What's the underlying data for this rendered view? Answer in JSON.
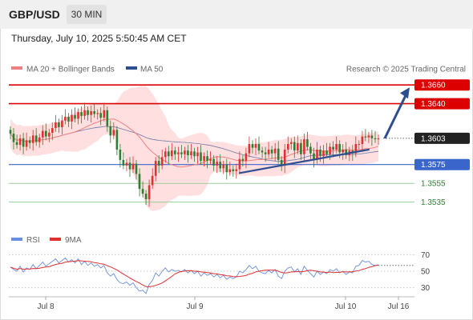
{
  "header": {
    "symbol": "GBP/USD",
    "timeframe": "30 MIN",
    "datetime": "Thursday, July 10, 2025 5:50:45 AM CET"
  },
  "legend": {
    "ma20_label": "MA 20 + Bollinger Bands",
    "ma50_label": "MA 50",
    "credit": "Research © 2025 Trading Central",
    "rsi_label": "RSI",
    "rsi_ma_label": "9MA"
  },
  "colors": {
    "bull": "#e03030",
    "bear": "#2e7d32",
    "ma20": "#f08080",
    "ma50": "#2e4f8f",
    "band": "#ffd9d9",
    "resistance": "#dd0000",
    "pivot": "#3a66cc",
    "support": "#2e7d32",
    "trendline": "#2e4f8f",
    "rsi": "#6a8ee0",
    "rsi_ma": "#e03030"
  },
  "chart_data": [
    {
      "type": "candlestick",
      "title": "GBP/USD",
      "timeframe": "30 MIN",
      "x_ticks": [
        "Jul 8",
        "Jul 9",
        "Jul 10",
        "Jul 16"
      ],
      "ylim": [
        1.3515,
        1.3667
      ],
      "levels": [
        {
          "value": "1.3660",
          "kind": "resistance"
        },
        {
          "value": "1.3640",
          "kind": "resistance"
        },
        {
          "value": "1.3603",
          "kind": "last"
        },
        {
          "value": "1.3575",
          "kind": "pivot"
        },
        {
          "value": "1.3555",
          "kind": "support"
        },
        {
          "value": "1.3535",
          "kind": "support"
        }
      ],
      "candles_close": [
        1.3608,
        1.3599,
        1.3596,
        1.3603,
        1.3594,
        1.3601,
        1.3598,
        1.3606,
        1.3599,
        1.3604,
        1.3611,
        1.3605,
        1.3609,
        1.3614,
        1.362,
        1.3615,
        1.3622,
        1.3626,
        1.3621,
        1.3628,
        1.3624,
        1.3631,
        1.3627,
        1.3633,
        1.3628,
        1.3632,
        1.3629,
        1.363,
        1.3625,
        1.3633,
        1.3616,
        1.3606,
        1.3612,
        1.3591,
        1.358,
        1.3574,
        1.3577,
        1.357,
        1.3576,
        1.3565,
        1.3549,
        1.3544,
        1.3538,
        1.3553,
        1.3563,
        1.3579,
        1.3574,
        1.3583,
        1.3589,
        1.3584,
        1.359,
        1.3586,
        1.3588,
        1.3586,
        1.359,
        1.3585,
        1.3589,
        1.3584,
        1.3588,
        1.3579,
        1.3584,
        1.3579,
        1.3581,
        1.3574,
        1.3578,
        1.3571,
        1.3575,
        1.3567,
        1.357,
        1.3568,
        1.357,
        1.3581,
        1.3579,
        1.3587,
        1.3597,
        1.3593,
        1.3597,
        1.359,
        1.3588,
        1.3586,
        1.3591,
        1.3587,
        1.3592,
        1.358,
        1.3574,
        1.3591,
        1.3597,
        1.3599,
        1.359,
        1.3598,
        1.3586,
        1.3602,
        1.3594,
        1.3587,
        1.358,
        1.3591,
        1.3584,
        1.359,
        1.3586,
        1.3594,
        1.3591,
        1.3597,
        1.3588,
        1.3591,
        1.3585,
        1.359,
        1.3587,
        1.3597,
        1.3597,
        1.3605,
        1.3604,
        1.3606,
        1.3603,
        1.3602,
        1.3603
      ],
      "ma20_end": 1.3593,
      "ma50_end": 1.3588,
      "forecast": {
        "from": 1.3603,
        "to": 1.366
      },
      "trendline": {
        "from": 1.3566,
        "to": 1.3591
      }
    },
    {
      "type": "line",
      "title": "RSI",
      "series": [
        {
          "name": "RSI"
        },
        {
          "name": "9MA"
        }
      ],
      "yticks": [
        70,
        50,
        30
      ],
      "ylim": [
        20,
        80
      ],
      "rsi_values": [
        55,
        52,
        50,
        56,
        49,
        54,
        52,
        58,
        53,
        57,
        61,
        56,
        59,
        62,
        65,
        60,
        63,
        66,
        61,
        64,
        60,
        65,
        58,
        62,
        57,
        60,
        56,
        58,
        54,
        57,
        48,
        44,
        47,
        40,
        36,
        35,
        37,
        33,
        36,
        30,
        26,
        27,
        23,
        34,
        39,
        48,
        44,
        50,
        54,
        49,
        52,
        50,
        51,
        49,
        52,
        48,
        51,
        47,
        50,
        44,
        48,
        45,
        47,
        43,
        46,
        42,
        45,
        40,
        43,
        41,
        43,
        50,
        48,
        52,
        57,
        53,
        56,
        50,
        48,
        47,
        51,
        48,
        52,
        44,
        41,
        50,
        54,
        55,
        49,
        53,
        46,
        56,
        51,
        47,
        43,
        50,
        46,
        49,
        47,
        52,
        50,
        53,
        48,
        50,
        46,
        49,
        48,
        56,
        57,
        63,
        61,
        62,
        58,
        57,
        57
      ],
      "rsi_ma_end": 57
    }
  ]
}
